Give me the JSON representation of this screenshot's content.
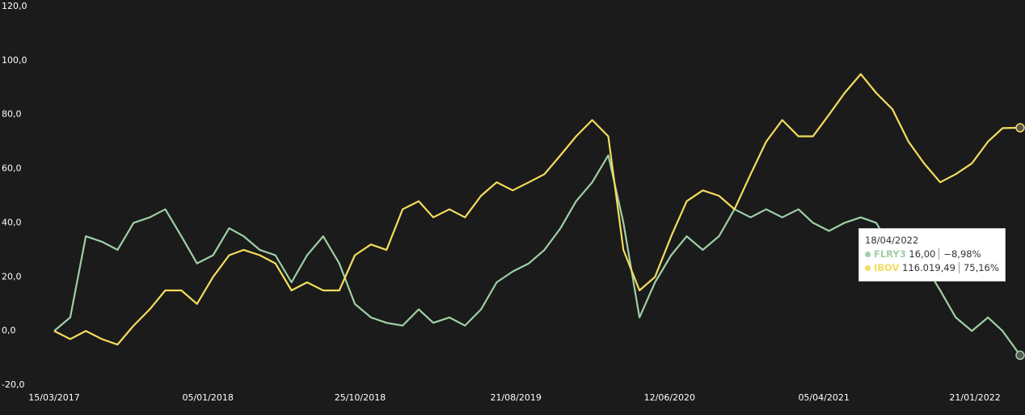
{
  "chart_data": {
    "type": "line",
    "x": [
      "2017-03-15",
      "2017-04-15",
      "2017-05-15",
      "2017-06-15",
      "2017-07-15",
      "2017-08-15",
      "2017-09-15",
      "2017-10-15",
      "2017-11-15",
      "2017-12-15",
      "2018-01-15",
      "2018-02-15",
      "2018-03-15",
      "2018-04-15",
      "2018-05-15",
      "2018-06-15",
      "2018-07-15",
      "2018-08-15",
      "2018-09-15",
      "2018-10-15",
      "2018-11-15",
      "2018-12-15",
      "2019-01-15",
      "2019-02-15",
      "2019-03-15",
      "2019-04-15",
      "2019-05-15",
      "2019-06-15",
      "2019-07-15",
      "2019-08-15",
      "2019-09-15",
      "2019-10-15",
      "2019-11-15",
      "2019-12-15",
      "2020-01-15",
      "2020-02-15",
      "2020-03-15",
      "2020-04-15",
      "2020-05-15",
      "2020-06-15",
      "2020-07-15",
      "2020-08-15",
      "2020-09-15",
      "2020-10-15",
      "2020-11-15",
      "2020-12-15",
      "2021-01-15",
      "2021-02-15",
      "2021-03-15",
      "2021-04-15",
      "2021-05-15",
      "2021-06-15",
      "2021-07-15",
      "2021-08-15",
      "2021-09-15",
      "2021-10-15",
      "2021-11-15",
      "2021-12-15",
      "2022-01-15",
      "2022-02-15",
      "2022-03-15",
      "2022-04-18"
    ],
    "series": [
      {
        "name": "FLRY3",
        "color": "#9ecfa6",
        "values": [
          0,
          5,
          35,
          33,
          30,
          40,
          42,
          45,
          35,
          25,
          28,
          38,
          35,
          30,
          28,
          18,
          28,
          35,
          25,
          10,
          5,
          3,
          2,
          8,
          3,
          5,
          2,
          8,
          18,
          22,
          25,
          30,
          38,
          48,
          55,
          65,
          40,
          5,
          18,
          28,
          35,
          30,
          35,
          45,
          42,
          45,
          42,
          45,
          40,
          37,
          40,
          42,
          40,
          30,
          20,
          25,
          15,
          5,
          0,
          5,
          0,
          -8.98
        ]
      },
      {
        "name": "IBOV",
        "color": "#f5dd5c",
        "values": [
          0,
          -3,
          0,
          -3,
          -5,
          2,
          8,
          15,
          15,
          10,
          20,
          28,
          30,
          28,
          25,
          15,
          18,
          15,
          15,
          28,
          32,
          30,
          45,
          48,
          42,
          45,
          42,
          50,
          55,
          52,
          55,
          58,
          65,
          72,
          78,
          72,
          30,
          15,
          20,
          35,
          48,
          52,
          50,
          45,
          58,
          70,
          78,
          72,
          72,
          80,
          88,
          95,
          88,
          82,
          70,
          62,
          55,
          58,
          62,
          70,
          75,
          75.16
        ]
      }
    ],
    "xlim": [
      "2017-03-15",
      "2022-04-18"
    ],
    "xticks": [
      {
        "value": "2017-03-15",
        "label": "15/03/2017"
      },
      {
        "value": "2018-01-05",
        "label": "05/01/2018"
      },
      {
        "value": "2018-10-25",
        "label": "25/10/2018"
      },
      {
        "value": "2019-08-21",
        "label": "21/08/2019"
      },
      {
        "value": "2020-06-12",
        "label": "12/06/2020"
      },
      {
        "value": "2021-04-05",
        "label": "05/04/2021"
      },
      {
        "value": "2022-01-21",
        "label": "21/01/2022"
      }
    ],
    "ylim": [
      -20,
      120
    ],
    "yticks": [
      {
        "value": -20,
        "label": "-20,0"
      },
      {
        "value": 0,
        "label": "0,0"
      },
      {
        "value": 20,
        "label": "20,0"
      },
      {
        "value": 40,
        "label": "40,0"
      },
      {
        "value": 60,
        "label": "60,0"
      },
      {
        "value": 80,
        "label": "80,0"
      },
      {
        "value": 100,
        "label": "100,0"
      },
      {
        "value": 120,
        "label": "120,0"
      }
    ],
    "grid": false,
    "tooltip": {
      "date": "18/04/2022",
      "rows": [
        {
          "value": "16,00",
          "change": "−8,98%"
        },
        {
          "value": "116.019,49",
          "change": "75,16%"
        }
      ]
    }
  }
}
